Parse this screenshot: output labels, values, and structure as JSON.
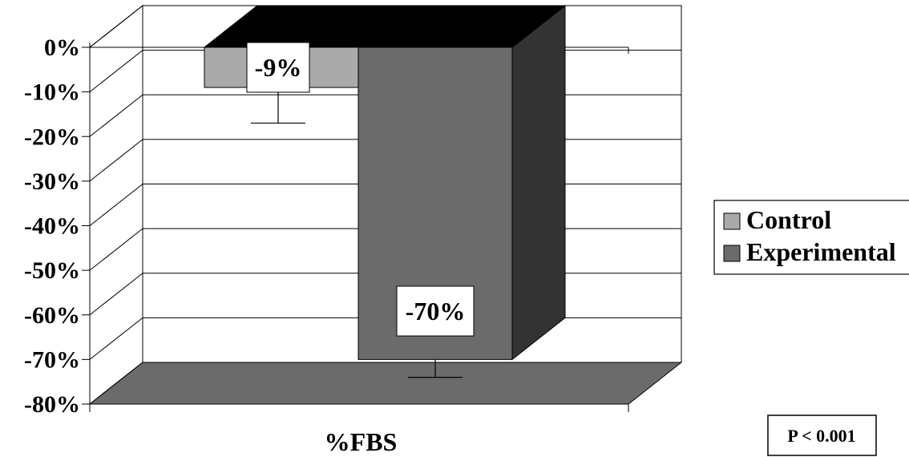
{
  "chart_data": {
    "type": "bar",
    "categories": [
      "%FBS"
    ],
    "series": [
      {
        "name": "Control",
        "values": [
          -9
        ],
        "error": [
          8
        ],
        "color": "#aaaaaa"
      },
      {
        "name": "Experimental",
        "values": [
          -70
        ],
        "error": [
          4
        ],
        "color": "#6b6b6b"
      }
    ],
    "data_labels": [
      "-9%",
      "-70%"
    ],
    "title": "",
    "xlabel": "%FBS",
    "ylabel": "",
    "ylim": [
      -80,
      0
    ],
    "yticks": [
      "0%",
      "-10%",
      "-20%",
      "-30%",
      "-40%",
      "-50%",
      "-60%",
      "-70%",
      "-80%"
    ],
    "grid": true,
    "legend_position": "right",
    "annotation": "P < 0.001",
    "three_d": true,
    "colors": {
      "floor": "#6b6b6b",
      "top": "#000000",
      "side_dark": "#333333"
    }
  }
}
